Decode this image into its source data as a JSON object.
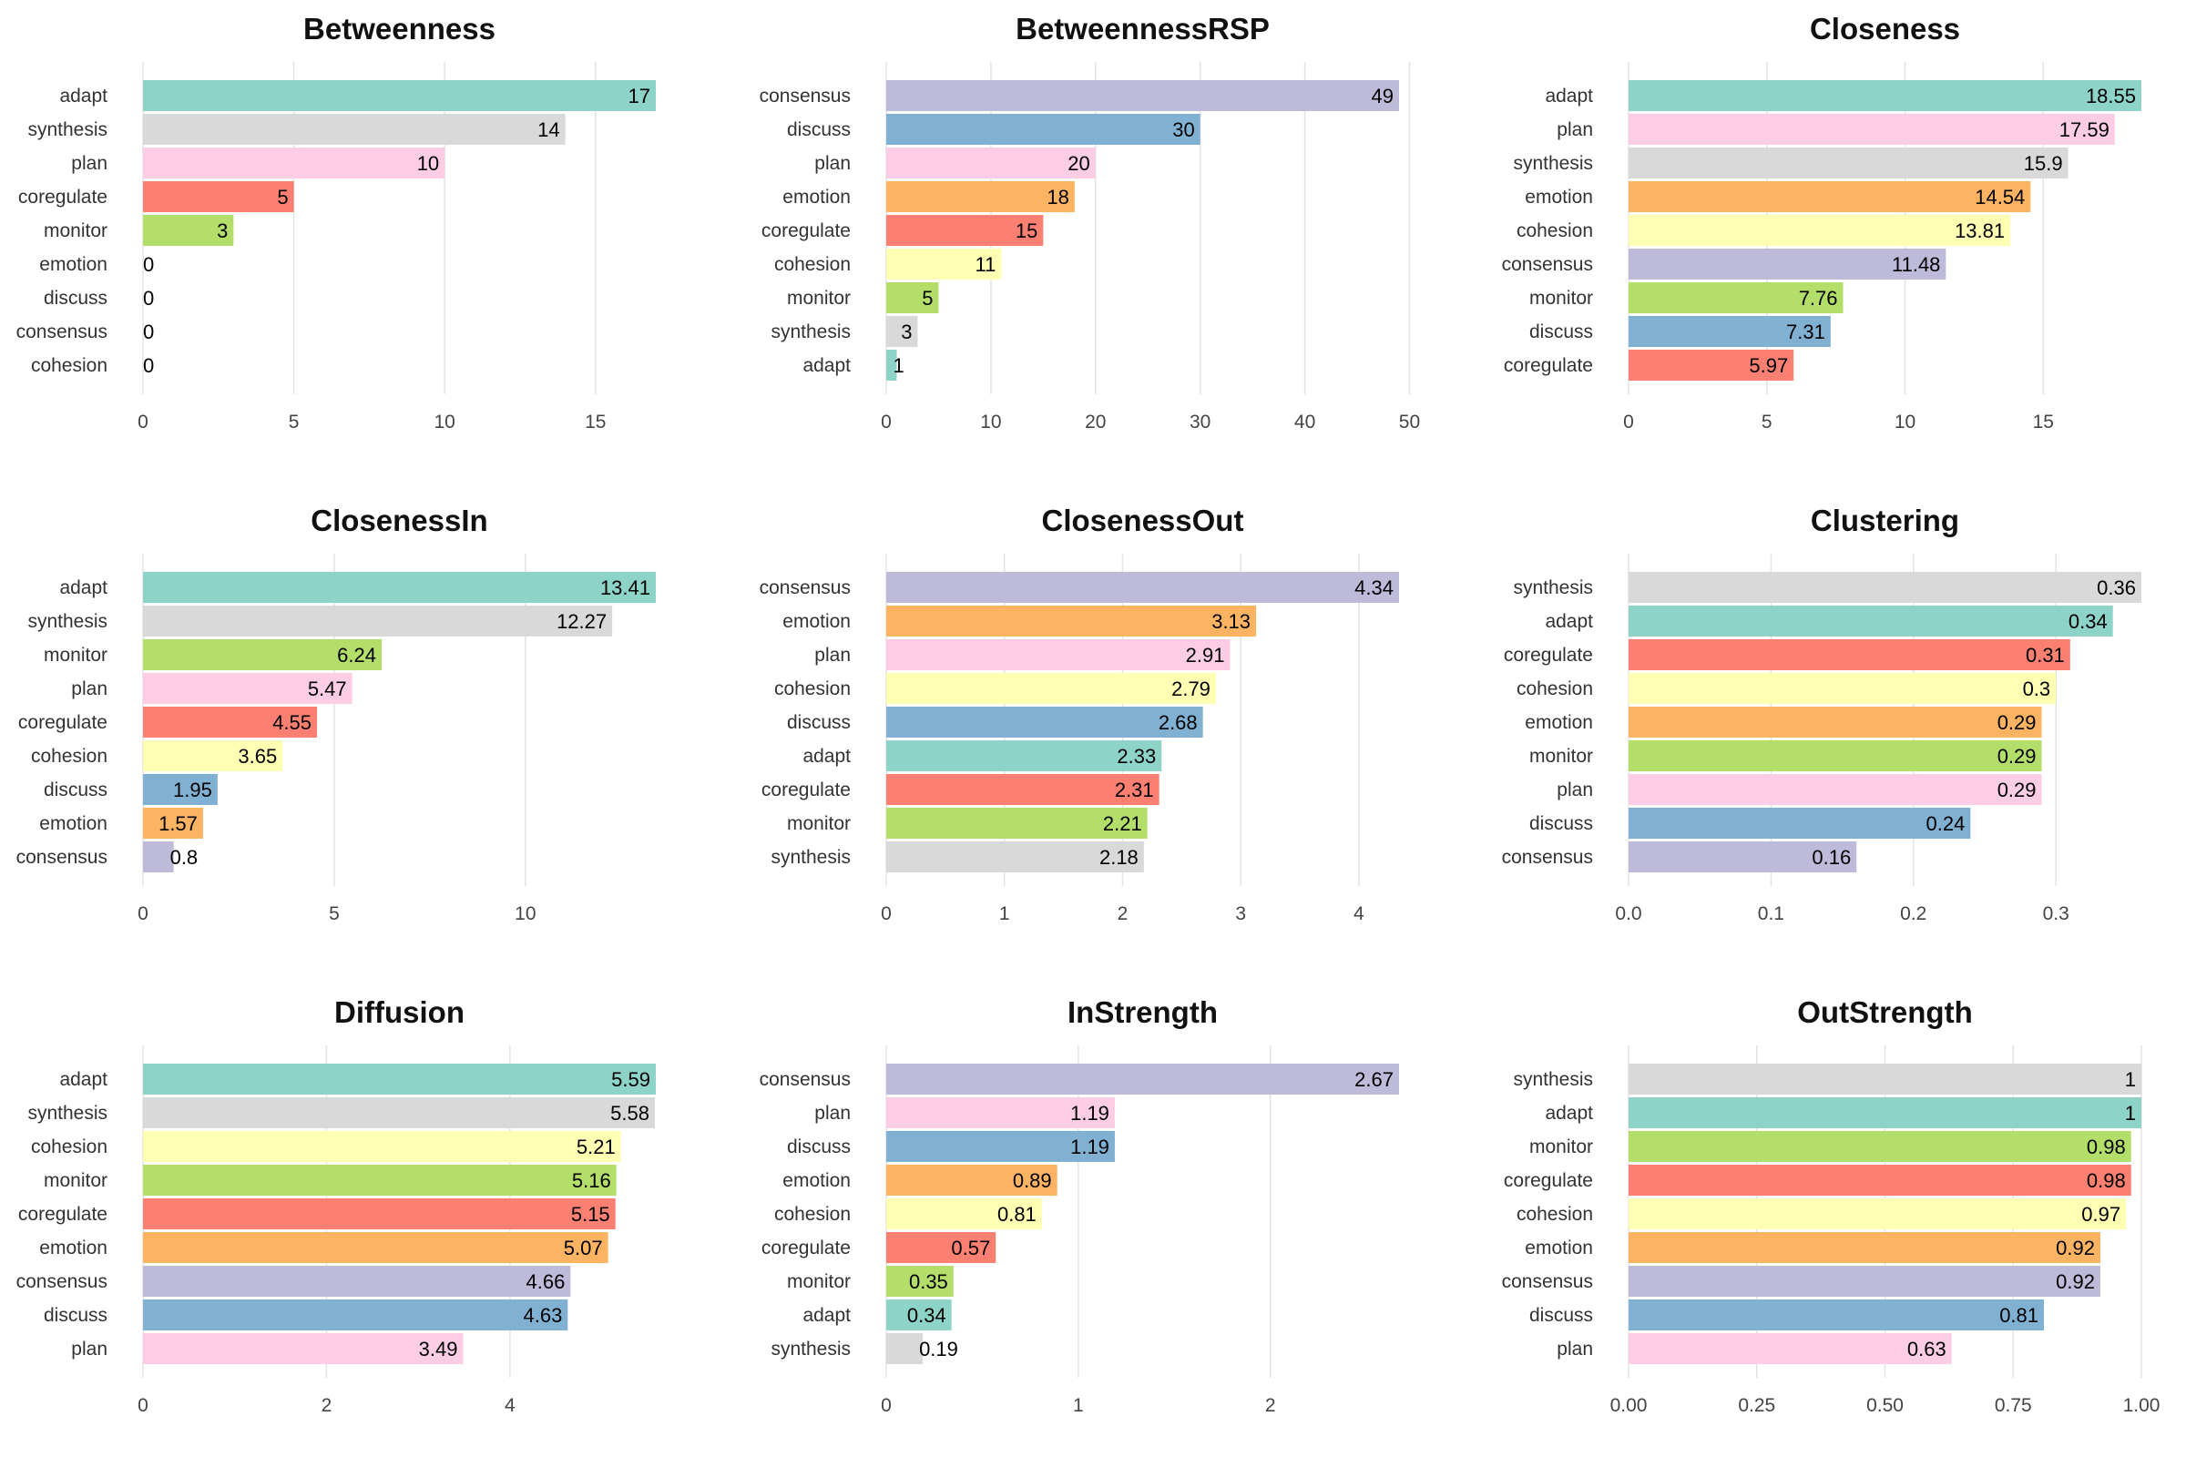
{
  "colors": {
    "adapt": "#8DD3C7",
    "synthesis": "#D9D9D9",
    "plan": "#FCCDE5",
    "coregulate": "#FB8072",
    "monitor": "#B3DE69",
    "emotion": "#FDB462",
    "discuss": "#80B1D3",
    "consensus": "#BEBADA",
    "cohesion": "#FFFFB3"
  },
  "chart_data": [
    {
      "type": "bar",
      "title": "Betweenness",
      "categories": [
        "adapt",
        "synthesis",
        "plan",
        "coregulate",
        "monitor",
        "emotion",
        "discuss",
        "consensus",
        "cohesion"
      ],
      "values": [
        17,
        14,
        10,
        5,
        3,
        0,
        0,
        0,
        0
      ],
      "value_labels": [
        "17",
        "14",
        "10",
        "5",
        "3",
        "0",
        "0",
        "0",
        "0"
      ],
      "xlim": [
        0,
        17
      ],
      "ticks": [
        0,
        5,
        10,
        15
      ],
      "tick_labels": [
        "0",
        "5",
        "10",
        "15"
      ]
    },
    {
      "type": "bar",
      "title": "BetweennessRSP",
      "categories": [
        "consensus",
        "discuss",
        "plan",
        "emotion",
        "coregulate",
        "cohesion",
        "monitor",
        "synthesis",
        "adapt"
      ],
      "values": [
        49,
        30,
        20,
        18,
        15,
        11,
        5,
        3,
        1
      ],
      "value_labels": [
        "49",
        "30",
        "20",
        "18",
        "15",
        "11",
        "5",
        "3",
        "1"
      ],
      "xlim": [
        0,
        49
      ],
      "ticks": [
        0,
        10,
        20,
        30,
        40,
        50
      ],
      "tick_labels": [
        "0",
        "10",
        "20",
        "30",
        "40",
        "50"
      ]
    },
    {
      "type": "bar",
      "title": "Closeness",
      "categories": [
        "adapt",
        "plan",
        "synthesis",
        "emotion",
        "cohesion",
        "consensus",
        "monitor",
        "discuss",
        "coregulate"
      ],
      "values": [
        18.55,
        17.59,
        15.9,
        14.54,
        13.81,
        11.48,
        7.76,
        7.31,
        5.97
      ],
      "value_labels": [
        "18.55",
        "17.59",
        "15.9",
        "14.54",
        "13.81",
        "11.48",
        "7.76",
        "7.31",
        "5.97"
      ],
      "xlim": [
        0,
        18.55
      ],
      "ticks": [
        0,
        5,
        10,
        15
      ],
      "tick_labels": [
        "0",
        "5",
        "10",
        "15"
      ]
    },
    {
      "type": "bar",
      "title": "ClosenessIn",
      "categories": [
        "adapt",
        "synthesis",
        "monitor",
        "plan",
        "coregulate",
        "cohesion",
        "discuss",
        "emotion",
        "consensus"
      ],
      "values": [
        13.41,
        12.27,
        6.24,
        5.47,
        4.55,
        3.65,
        1.95,
        1.57,
        0.8
      ],
      "value_labels": [
        "13.41",
        "12.27",
        "6.24",
        "5.47",
        "4.55",
        "3.65",
        "1.95",
        "1.57",
        "0.8"
      ],
      "xlim": [
        0,
        13.41
      ],
      "ticks": [
        0,
        5,
        10
      ],
      "tick_labels": [
        "0",
        "5",
        "10"
      ]
    },
    {
      "type": "bar",
      "title": "ClosenessOut",
      "categories": [
        "consensus",
        "emotion",
        "plan",
        "cohesion",
        "discuss",
        "adapt",
        "coregulate",
        "monitor",
        "synthesis"
      ],
      "values": [
        4.34,
        3.13,
        2.91,
        2.79,
        2.68,
        2.33,
        2.31,
        2.21,
        2.18
      ],
      "value_labels": [
        "4.34",
        "3.13",
        "2.91",
        "2.79",
        "2.68",
        "2.33",
        "2.31",
        "2.21",
        "2.18"
      ],
      "xlim": [
        0,
        4.34
      ],
      "ticks": [
        0,
        1,
        2,
        3,
        4
      ],
      "tick_labels": [
        "0",
        "1",
        "2",
        "3",
        "4"
      ]
    },
    {
      "type": "bar",
      "title": "Clustering",
      "categories": [
        "synthesis",
        "adapt",
        "coregulate",
        "cohesion",
        "emotion",
        "monitor",
        "plan",
        "discuss",
        "consensus"
      ],
      "values": [
        0.36,
        0.34,
        0.31,
        0.3,
        0.29,
        0.29,
        0.29,
        0.24,
        0.16
      ],
      "value_labels": [
        "0.36",
        "0.34",
        "0.31",
        "0.3",
        "0.29",
        "0.29",
        "0.29",
        "0.24",
        "0.16"
      ],
      "xlim": [
        0,
        0.36
      ],
      "ticks": [
        0,
        0.1,
        0.2,
        0.3
      ],
      "tick_labels": [
        "0.0",
        "0.1",
        "0.2",
        "0.3"
      ]
    },
    {
      "type": "bar",
      "title": "Diffusion",
      "categories": [
        "adapt",
        "synthesis",
        "cohesion",
        "monitor",
        "coregulate",
        "emotion",
        "consensus",
        "discuss",
        "plan"
      ],
      "values": [
        5.59,
        5.58,
        5.21,
        5.16,
        5.15,
        5.07,
        4.66,
        4.63,
        3.49
      ],
      "value_labels": [
        "5.59",
        "5.58",
        "5.21",
        "5.16",
        "5.15",
        "5.07",
        "4.66",
        "4.63",
        "3.49"
      ],
      "xlim": [
        0,
        5.59
      ],
      "ticks": [
        0,
        2,
        4
      ],
      "tick_labels": [
        "0",
        "2",
        "4"
      ]
    },
    {
      "type": "bar",
      "title": "InStrength",
      "categories": [
        "consensus",
        "plan",
        "discuss",
        "emotion",
        "cohesion",
        "coregulate",
        "monitor",
        "adapt",
        "synthesis"
      ],
      "values": [
        2.67,
        1.19,
        1.19,
        0.89,
        0.81,
        0.57,
        0.35,
        0.34,
        0.19
      ],
      "value_labels": [
        "2.67",
        "1.19",
        "1.19",
        "0.89",
        "0.81",
        "0.57",
        "0.35",
        "0.34",
        "0.19"
      ],
      "xlim": [
        0,
        2.67
      ],
      "ticks": [
        0,
        1,
        2
      ],
      "tick_labels": [
        "0",
        "1",
        "2"
      ]
    },
    {
      "type": "bar",
      "title": "OutStrength",
      "categories": [
        "synthesis",
        "adapt",
        "monitor",
        "coregulate",
        "cohesion",
        "emotion",
        "consensus",
        "discuss",
        "plan"
      ],
      "values": [
        1,
        1,
        0.98,
        0.98,
        0.97,
        0.92,
        0.92,
        0.81,
        0.63
      ],
      "value_labels": [
        "1",
        "1",
        "0.98",
        "0.98",
        "0.97",
        "0.92",
        "0.92",
        "0.81",
        "0.63"
      ],
      "xlim": [
        0,
        1
      ],
      "ticks": [
        0,
        0.25,
        0.5,
        0.75,
        1
      ],
      "tick_labels": [
        "0.00",
        "0.25",
        "0.50",
        "0.75",
        "1.00"
      ]
    }
  ]
}
